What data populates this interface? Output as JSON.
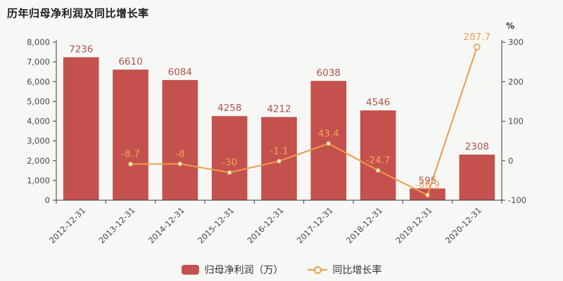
{
  "title": "历年归母净利润及同比增长率",
  "colors": {
    "background": "#f7f8f5",
    "bar": "#c4514e",
    "bar_label": "#ad5350",
    "line": "#ef9b4b",
    "line_label": "#f0a158",
    "axis": "#3d3d3d",
    "tick_label": "#4a4a4a",
    "marker_fill": "#ffffff",
    "title_color": "#1c1c1c",
    "legend_text": "#333333"
  },
  "chart_data": {
    "type": "bar+line",
    "title": "历年归母净利润及同比增长率",
    "categories": [
      "2012-12-31",
      "2013-12-31",
      "2014-12-31",
      "2015-12-31",
      "2016-12-31",
      "2017-12-31",
      "2018-12-31",
      "2019-12-31",
      "2020-12-31"
    ],
    "series": [
      {
        "name": "归母净利润（万）",
        "type": "bar",
        "y_axis": "left",
        "values": [
          7236,
          6610,
          6084,
          4258,
          4212,
          6038,
          4546,
          595,
          2308
        ]
      },
      {
        "name": "同比增长率",
        "type": "line",
        "y_axis": "right",
        "values": [
          null,
          -8.7,
          -8,
          -30,
          -1.1,
          43.4,
          -24.7,
          -86.9,
          287.7
        ]
      }
    ],
    "left_axis": {
      "range": [
        0,
        8000
      ],
      "tick_labels": [
        "0",
        "1,000",
        "2,000",
        "3,000",
        "4,000",
        "5,000",
        "6,000",
        "7,000",
        "8,000"
      ]
    },
    "right_axis": {
      "range": [
        -100,
        300
      ],
      "tick_labels": [
        "-100",
        "0",
        "100",
        "200",
        "300"
      ],
      "unit": "%"
    },
    "grid": false,
    "legend_position": "bottom-center"
  }
}
